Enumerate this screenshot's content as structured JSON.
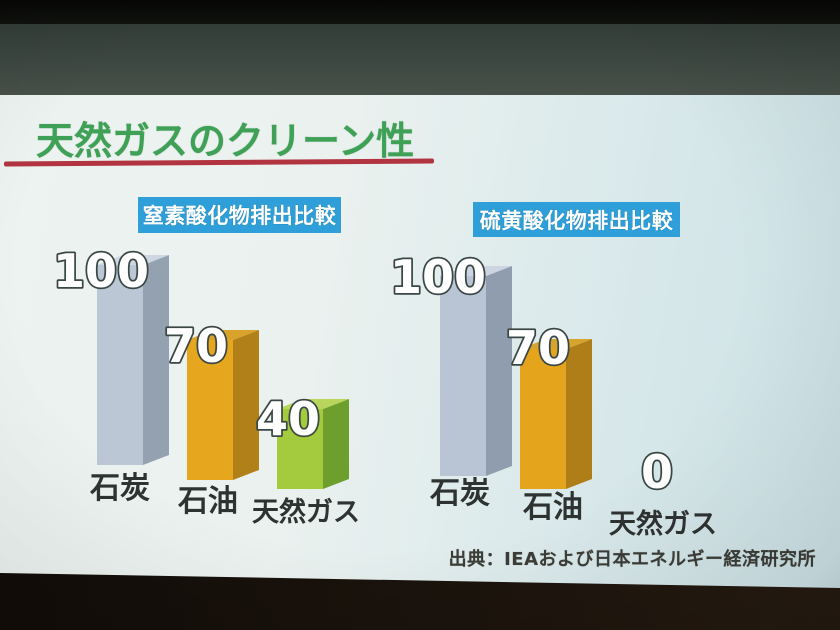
{
  "photo": {
    "top_black_color": "#0b0d09",
    "screen_band_color": "#3f4a44",
    "bottom_band_color": "#1a130d"
  },
  "slide": {
    "title": "天然ガスのクリーン性",
    "title_color": "#3ea156",
    "underline_color": "#b23440",
    "source": "出典：IEAおよび日本エネルギー経済研究所"
  },
  "chart_data": [
    {
      "type": "bar",
      "title": "窒素酸化物排出比較",
      "title_bg": "#2e9fd8",
      "title_color": "#ffffff",
      "categories": [
        "石炭",
        "石油",
        "天然ガス"
      ],
      "values": [
        100,
        70,
        40
      ],
      "ylim": [
        0,
        100
      ],
      "grid": false,
      "legend": false,
      "style": "3d-column",
      "bar_colors": [
        {
          "front": "#bcc7d5",
          "side": "#93a1b1",
          "top": "#cdd6e1"
        },
        {
          "front": "#e6a71e",
          "side": "#b28019",
          "top": "#d9a22a"
        },
        {
          "front": "#a4cb3d",
          "side": "#6e9e2b",
          "top": "#b9d65c"
        }
      ],
      "value_label_fill": "#ffffff",
      "value_label_outline": "#3a4744",
      "category_label_color": "#2e3331"
    },
    {
      "type": "bar",
      "title": "硫黄酸化物排出比較",
      "title_bg": "#2e9fd8",
      "title_color": "#ffffff",
      "categories": [
        "石炭",
        "石油",
        "天然ガス"
      ],
      "values": [
        100,
        70,
        0
      ],
      "ylim": [
        0,
        100
      ],
      "grid": false,
      "legend": false,
      "style": "3d-column",
      "bar_colors": [
        {
          "front": "#b9c5d5",
          "side": "#8f9daf",
          "top": "#ccd5e1"
        },
        {
          "front": "#e4a51d",
          "side": "#b07e19",
          "top": "#d7a52e"
        },
        {
          "front": "#a4cb3d",
          "side": "#6e9e2b",
          "top": "#b9d65c"
        }
      ],
      "value_label_fill": "#ffffff",
      "value_label_outline": "#3a4744",
      "category_label_color": "#2e3331"
    }
  ]
}
